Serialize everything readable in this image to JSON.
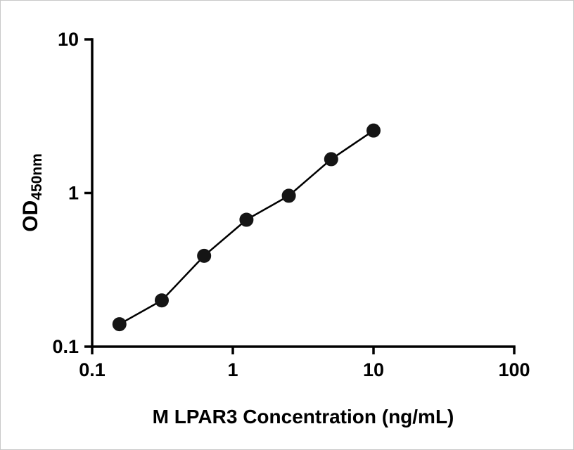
{
  "chart_data": {
    "type": "scatter",
    "title": "",
    "xlabel": "M LPAR3 Concentration (ng/mL)",
    "ylabel_main": "OD",
    "ylabel_sub": "450nm",
    "x_scale": "log",
    "y_scale": "log",
    "xlim": [
      0.1,
      100
    ],
    "ylim": [
      0.1,
      10
    ],
    "x_ticks": [
      0.1,
      1,
      10,
      100
    ],
    "x_tick_labels": [
      "0.1",
      "1",
      "10",
      "100"
    ],
    "y_ticks": [
      0.1,
      1,
      10
    ],
    "y_tick_labels": [
      "0.1",
      "1",
      "10"
    ],
    "x": [
      0.15625,
      0.3125,
      0.625,
      1.25,
      2.5,
      5,
      10
    ],
    "y": [
      0.14,
      0.2,
      0.39,
      0.67,
      0.96,
      1.66,
      2.55
    ],
    "grid": false,
    "legend": null,
    "line_color": "#000000",
    "marker_color": "#151515",
    "marker_shape": "circle"
  }
}
